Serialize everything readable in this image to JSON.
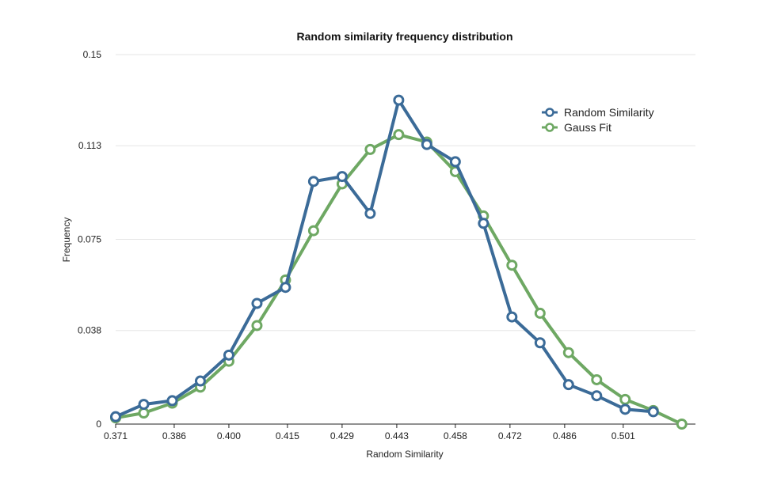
{
  "chart_data": {
    "type": "line",
    "title": "Random similarity frequency distribution",
    "xlabel": "Random Similarity",
    "ylabel": "Frequency",
    "x_ticks": [
      "0.371",
      "0.386",
      "0.400",
      "0.415",
      "0.429",
      "0.443",
      "0.458",
      "0.472",
      "0.486",
      "0.501"
    ],
    "y_ticks": [
      "0",
      "0.038",
      "0.075",
      "0.113",
      "0.15"
    ],
    "xlim": [
      0.371,
      0.5195
    ],
    "ylim": [
      0,
      0.15
    ],
    "grid": true,
    "legend_position": "top-right",
    "series": [
      {
        "name": "Random Similarity",
        "color": "#3b6b98",
        "x": [
          0.371,
          0.3782,
          0.3855,
          0.3927,
          0.4,
          0.4072,
          0.4145,
          0.4217,
          0.429,
          0.4362,
          0.4435,
          0.4507,
          0.458,
          0.4652,
          0.4725,
          0.4797,
          0.487,
          0.4942,
          0.5015,
          0.5087
        ],
        "y": [
          0.003,
          0.008,
          0.0095,
          0.0175,
          0.028,
          0.049,
          0.0555,
          0.0985,
          0.1005,
          0.0855,
          0.1315,
          0.1135,
          0.1065,
          0.0815,
          0.0435,
          0.033,
          0.016,
          0.0115,
          0.006,
          0.005
        ]
      },
      {
        "name": "Gauss Fit",
        "color": "#6ea863",
        "x": [
          0.371,
          0.3782,
          0.3855,
          0.3927,
          0.4,
          0.4072,
          0.4145,
          0.4217,
          0.429,
          0.4362,
          0.4435,
          0.4507,
          0.458,
          0.4652,
          0.4725,
          0.4797,
          0.487,
          0.4942,
          0.5015,
          0.5087,
          0.516
        ],
        "y": [
          0.0025,
          0.0045,
          0.0085,
          0.015,
          0.0255,
          0.04,
          0.0585,
          0.0785,
          0.0975,
          0.1115,
          0.1175,
          0.1145,
          0.1025,
          0.0845,
          0.0645,
          0.045,
          0.029,
          0.018,
          0.01,
          0.0055,
          0.0
        ]
      }
    ]
  }
}
